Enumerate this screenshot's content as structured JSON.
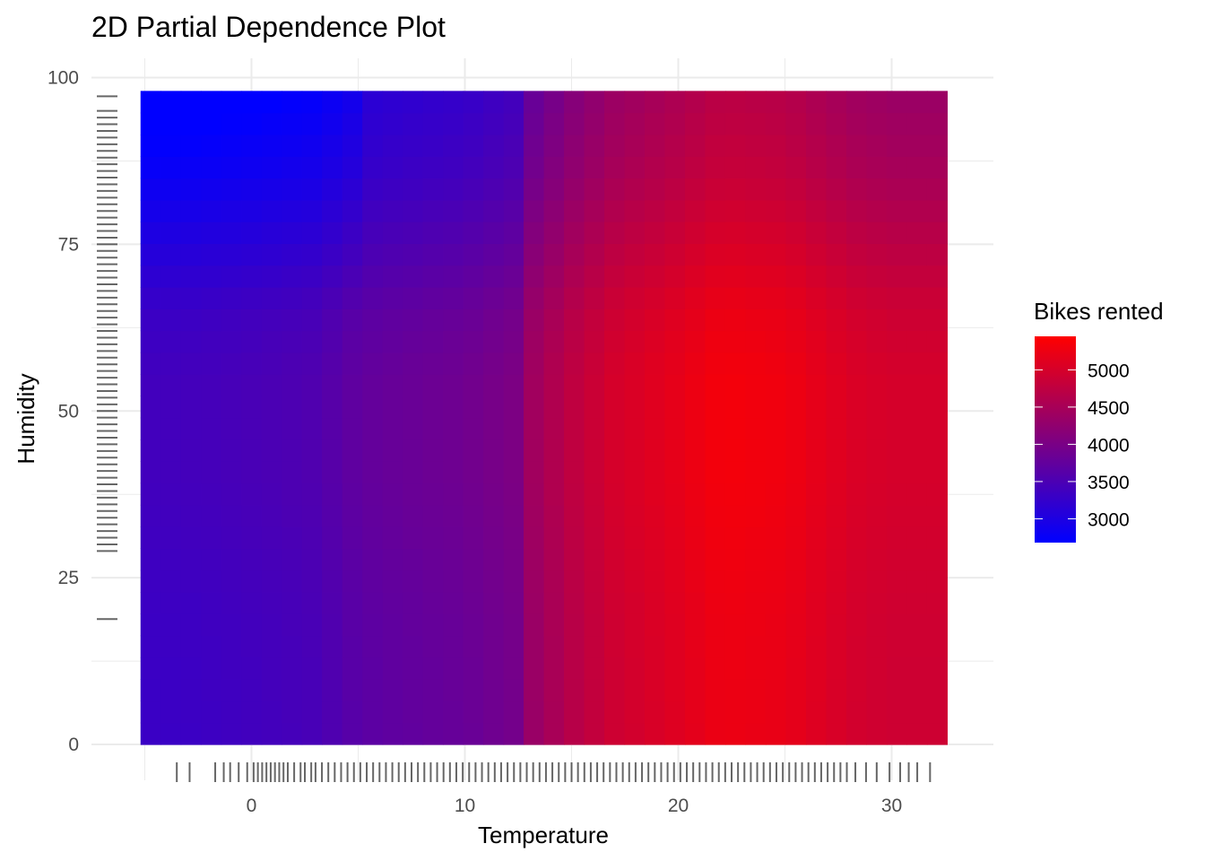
{
  "chart_data": {
    "type": "heatmap",
    "title": "2D Partial Dependence Plot",
    "xlabel": "Temperature",
    "ylabel": "Humidity",
    "xlim": [
      -5.2,
      32.6
    ],
    "ylim": [
      0,
      98
    ],
    "x_ticks": [
      0,
      10,
      20,
      30
    ],
    "x_tick_labels": [
      "0",
      "10",
      "20",
      "30"
    ],
    "y_ticks": [
      0,
      25,
      50,
      75,
      100
    ],
    "y_tick_labels": [
      "0",
      "25",
      "50",
      "75",
      "100"
    ],
    "grid": true,
    "legend": {
      "title": "Bikes rented",
      "placement": "right",
      "min": 2680,
      "max": 5450,
      "ticks": [
        3000,
        3500,
        4000,
        4500,
        5000
      ],
      "tick_labels": [
        "3000",
        "3500",
        "4000",
        "4500",
        "5000"
      ],
      "low_color": "#0000ff",
      "high_color": "#ff0000"
    },
    "temperature_profile": {
      "x": [
        -5.2,
        -3,
        0,
        3,
        5,
        7,
        10,
        12.5,
        13,
        15,
        17,
        20,
        22,
        25,
        27,
        28.5,
        30,
        32.6
      ],
      "values": [
        3300,
        3320,
        3380,
        3460,
        3650,
        3720,
        3800,
        3950,
        4300,
        4650,
        4900,
        5100,
        5250,
        5200,
        5050,
        4950,
        4900,
        4900
      ]
    },
    "humidity_effect": {
      "y": [
        0,
        20,
        40,
        55,
        65,
        75,
        85,
        98
      ],
      "values": [
        0,
        20,
        90,
        90,
        0,
        -200,
        -400,
        -550
      ]
    },
    "cold_humid_adjustment": {
      "description_applies_below_temperature": 5,
      "extra_at_max_humidity": -200
    },
    "rug_temperature": [
      -3.5,
      -2.9,
      -1.7,
      -1.3,
      -1,
      -0.6,
      -0.2,
      0.1,
      0.3,
      0.5,
      0.7,
      0.9,
      1.1,
      1.3,
      1.5,
      1.7,
      2,
      2.3,
      2.5,
      2.8,
      3,
      3.3,
      3.6,
      3.9,
      4.2,
      4.5,
      4.8,
      5.1,
      5.4,
      5.7,
      6,
      6.3,
      6.6,
      6.9,
      7.2,
      7.5,
      7.8,
      8.1,
      8.4,
      8.7,
      9,
      9.3,
      9.6,
      9.9,
      10.2,
      10.5,
      10.8,
      11.1,
      11.4,
      11.7,
      12,
      12.3,
      12.6,
      12.9,
      13.2,
      13.5,
      13.8,
      14.1,
      14.4,
      14.7,
      15,
      15.3,
      15.6,
      15.9,
      16.2,
      16.5,
      16.8,
      17.1,
      17.4,
      17.7,
      18,
      18.3,
      18.6,
      18.9,
      19.2,
      19.5,
      19.8,
      20.1,
      20.4,
      20.7,
      21,
      21.3,
      21.6,
      21.9,
      22.2,
      22.5,
      22.8,
      23.1,
      23.4,
      23.7,
      24,
      24.3,
      24.6,
      24.9,
      25.2,
      25.5,
      25.8,
      26.1,
      26.4,
      26.7,
      27,
      27.3,
      27.6,
      27.9,
      28.3,
      28.8,
      29.3,
      29.9,
      30.4,
      30.8,
      31.2,
      31.8
    ],
    "rug_humidity": [
      18.8,
      29,
      30,
      31,
      32,
      33,
      34,
      35,
      36,
      37,
      38,
      39,
      40,
      41,
      42,
      43,
      44,
      45,
      46,
      47,
      48,
      49,
      50,
      51,
      52,
      53,
      54,
      55,
      56,
      57,
      58,
      59,
      60,
      61,
      62,
      63,
      64,
      65,
      66,
      67,
      68,
      69,
      70,
      71,
      72,
      73,
      74,
      75,
      76,
      77,
      78,
      79,
      80,
      81,
      82,
      83,
      84,
      85,
      86,
      87,
      88,
      89,
      90,
      91,
      92,
      93,
      94,
      95,
      97.2
    ]
  }
}
